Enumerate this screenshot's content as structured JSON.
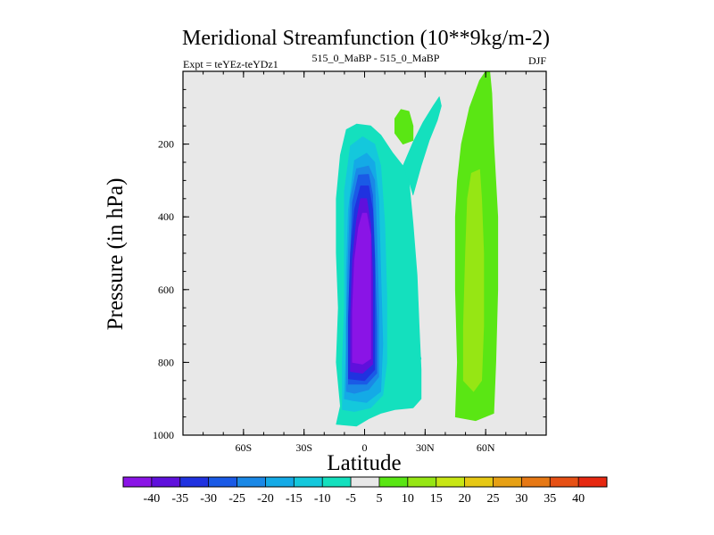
{
  "chart_data": {
    "type": "contour",
    "title": "Meridional Streamfunction (10**9kg/m-2)",
    "left_label": "Expt = teYEz-teYDz1",
    "center_label": "515_0_MaBP - 515_0_MaBP",
    "right_label": "DJF",
    "xlabel": "Latitude",
    "ylabel": "Pressure (in hPa)",
    "xlim": [
      -90,
      90
    ],
    "ylim": [
      0,
      1000
    ],
    "x_ticks": [
      -60,
      -30,
      0,
      30,
      60
    ],
    "x_tick_labels": [
      "60S",
      "30S",
      "0",
      "30N",
      "60N"
    ],
    "y_ticks": [
      200,
      400,
      600,
      800,
      1000
    ],
    "y_tick_labels": [
      "200",
      "400",
      "600",
      "800",
      "1000"
    ],
    "background_color": "#e8e8e8",
    "colorbar": {
      "levels": [
        -40,
        -35,
        -30,
        -25,
        -20,
        -15,
        -10,
        -5,
        5,
        10,
        15,
        20,
        25,
        30,
        35,
        40
      ],
      "level_labels": [
        "-40",
        "-35",
        "-30",
        "-25",
        "-20",
        "-15",
        "-10",
        "-5",
        "5",
        "10",
        "15",
        "20",
        "25",
        "30",
        "35",
        "40"
      ],
      "colors": [
        "#8a14e6",
        "#5f10dc",
        "#2032e0",
        "#1a5ae6",
        "#1a88e6",
        "#14aae6",
        "#14c8dc",
        "#14e0be",
        "#e8e8e8",
        "#5ae614",
        "#96e614",
        "#c8e614",
        "#e6c814",
        "#e6a014",
        "#e67814",
        "#e65014",
        "#e62810"
      ]
    },
    "regions": [
      {
        "name": "tropical-band-contour",
        "level": -5,
        "color": "#14e0be",
        "points": [
          [
            -14,
            970
          ],
          [
            -12,
            920
          ],
          [
            -14,
            800
          ],
          [
            -13,
            650
          ],
          [
            -14,
            500
          ],
          [
            -14,
            350
          ],
          [
            -12,
            230
          ],
          [
            -9,
            160
          ],
          [
            -4,
            145
          ],
          [
            3,
            150
          ],
          [
            8,
            175
          ],
          [
            14,
            225
          ],
          [
            19,
            260
          ],
          [
            22,
            300
          ],
          [
            24,
            420
          ],
          [
            26,
            560
          ],
          [
            27,
            700
          ],
          [
            28,
            820
          ],
          [
            28,
            900
          ],
          [
            24,
            925
          ],
          [
            15,
            930
          ],
          [
            8,
            940
          ],
          [
            2,
            955
          ],
          [
            -4,
            975
          ]
        ]
      },
      {
        "name": "upper-tongue-contour",
        "level": -5,
        "color": "#14e0be",
        "points": [
          [
            19,
            260
          ],
          [
            24,
            195
          ],
          [
            29,
            140
          ],
          [
            34,
            95
          ],
          [
            37,
            70
          ],
          [
            38,
            95
          ],
          [
            36,
            135
          ],
          [
            32,
            190
          ],
          [
            28,
            260
          ],
          [
            24,
            340
          ],
          [
            22,
            300
          ]
        ]
      },
      {
        "name": "core-contour-10",
        "level": -10,
        "color": "#14c8dc",
        "points": [
          [
            -11,
            930
          ],
          [
            -11,
            800
          ],
          [
            -10,
            650
          ],
          [
            -10,
            500
          ],
          [
            -10,
            330
          ],
          [
            -7,
            205
          ],
          [
            -1,
            180
          ],
          [
            5,
            200
          ],
          [
            8,
            260
          ],
          [
            10,
            420
          ],
          [
            11,
            620
          ],
          [
            11,
            800
          ],
          [
            9,
            890
          ],
          [
            3,
            925
          ],
          [
            -5,
            935
          ]
        ]
      },
      {
        "name": "core-contour-15",
        "level": -15,
        "color": "#14aae6",
        "points": [
          [
            -10,
            900
          ],
          [
            -9,
            750
          ],
          [
            -9,
            550
          ],
          [
            -8,
            380
          ],
          [
            -5,
            245
          ],
          [
            1,
            225
          ],
          [
            5,
            250
          ],
          [
            7,
            350
          ],
          [
            8,
            550
          ],
          [
            9,
            750
          ],
          [
            8,
            880
          ],
          [
            1,
            910
          ],
          [
            -6,
            905
          ]
        ]
      },
      {
        "name": "core-contour-20",
        "level": -20,
        "color": "#1a88e6",
        "points": [
          [
            -9,
            880
          ],
          [
            -9,
            700
          ],
          [
            -8,
            500
          ],
          [
            -7,
            350
          ],
          [
            -4,
            268
          ],
          [
            2,
            260
          ],
          [
            5,
            300
          ],
          [
            6,
            450
          ],
          [
            7,
            650
          ],
          [
            7,
            840
          ],
          [
            2,
            875
          ],
          [
            -5,
            885
          ]
        ]
      },
      {
        "name": "core-contour-25",
        "level": -25,
        "color": "#1a5ae6",
        "points": [
          [
            -8,
            860
          ],
          [
            -8,
            700
          ],
          [
            -7,
            500
          ],
          [
            -6,
            360
          ],
          [
            -3,
            285
          ],
          [
            2,
            283
          ],
          [
            4,
            340
          ],
          [
            5,
            500
          ],
          [
            6,
            700
          ],
          [
            6,
            830
          ],
          [
            1,
            860
          ]
        ]
      },
      {
        "name": "core-contour-30",
        "level": -30,
        "color": "#2032e0",
        "points": [
          [
            -8,
            845
          ],
          [
            -8,
            680
          ],
          [
            -7,
            500
          ],
          [
            -5,
            380
          ],
          [
            -2,
            315
          ],
          [
            2,
            315
          ],
          [
            4,
            380
          ],
          [
            5,
            520
          ],
          [
            5,
            700
          ],
          [
            5,
            820
          ],
          [
            0,
            850
          ]
        ]
      },
      {
        "name": "core-contour-35",
        "level": -35,
        "color": "#5f10dc",
        "points": [
          [
            -7,
            825
          ],
          [
            -7,
            680
          ],
          [
            -6,
            520
          ],
          [
            -4,
            410
          ],
          [
            -2,
            350
          ],
          [
            1,
            350
          ],
          [
            3,
            420
          ],
          [
            4,
            560
          ],
          [
            4,
            720
          ],
          [
            4,
            805
          ],
          [
            -1,
            830
          ]
        ]
      },
      {
        "name": "core-contour-40",
        "level": -40,
        "color": "#8a14e6",
        "points": [
          [
            -6,
            800
          ],
          [
            -6,
            660
          ],
          [
            -5,
            520
          ],
          [
            -3,
            430
          ],
          [
            -1,
            390
          ],
          [
            1,
            390
          ],
          [
            3,
            450
          ],
          [
            3,
            580
          ],
          [
            3,
            720
          ],
          [
            3,
            790
          ],
          [
            -1,
            805
          ]
        ]
      },
      {
        "name": "stratosphere-blob",
        "level": 5,
        "color": "#5ae614",
        "points": [
          [
            15,
            130
          ],
          [
            18,
            105
          ],
          [
            22,
            110
          ],
          [
            24,
            150
          ],
          [
            24,
            190
          ],
          [
            19,
            200
          ],
          [
            15,
            170
          ]
        ]
      },
      {
        "name": "north-cell-contour-5",
        "level": 5,
        "color": "#5ae614",
        "points": [
          [
            45,
            950
          ],
          [
            46,
            800
          ],
          [
            45,
            600
          ],
          [
            45,
            400
          ],
          [
            46,
            300
          ],
          [
            48,
            200
          ],
          [
            52,
            100
          ],
          [
            57,
            25
          ],
          [
            60,
            0
          ],
          [
            62,
            0
          ],
          [
            63,
            60
          ],
          [
            64,
            200
          ],
          [
            66,
            400
          ],
          [
            66,
            600
          ],
          [
            65,
            800
          ],
          [
            64,
            940
          ],
          [
            55,
            960
          ]
        ]
      },
      {
        "name": "north-cell-contour-10",
        "level": 10,
        "color": "#96e614",
        "points": [
          [
            49,
            850
          ],
          [
            49,
            700
          ],
          [
            50,
            500
          ],
          [
            51,
            350
          ],
          [
            53,
            280
          ],
          [
            57,
            270
          ],
          [
            58,
            350
          ],
          [
            59,
            500
          ],
          [
            59,
            700
          ],
          [
            58,
            850
          ],
          [
            54,
            880
          ]
        ]
      }
    ],
    "specks": [
      {
        "name": "speck-contour",
        "level": -5,
        "color": "#14e0be",
        "points": [
          [
            26,
            780
          ],
          [
            27,
            770
          ],
          [
            28,
            790
          ],
          [
            27,
            800
          ]
        ]
      }
    ]
  }
}
